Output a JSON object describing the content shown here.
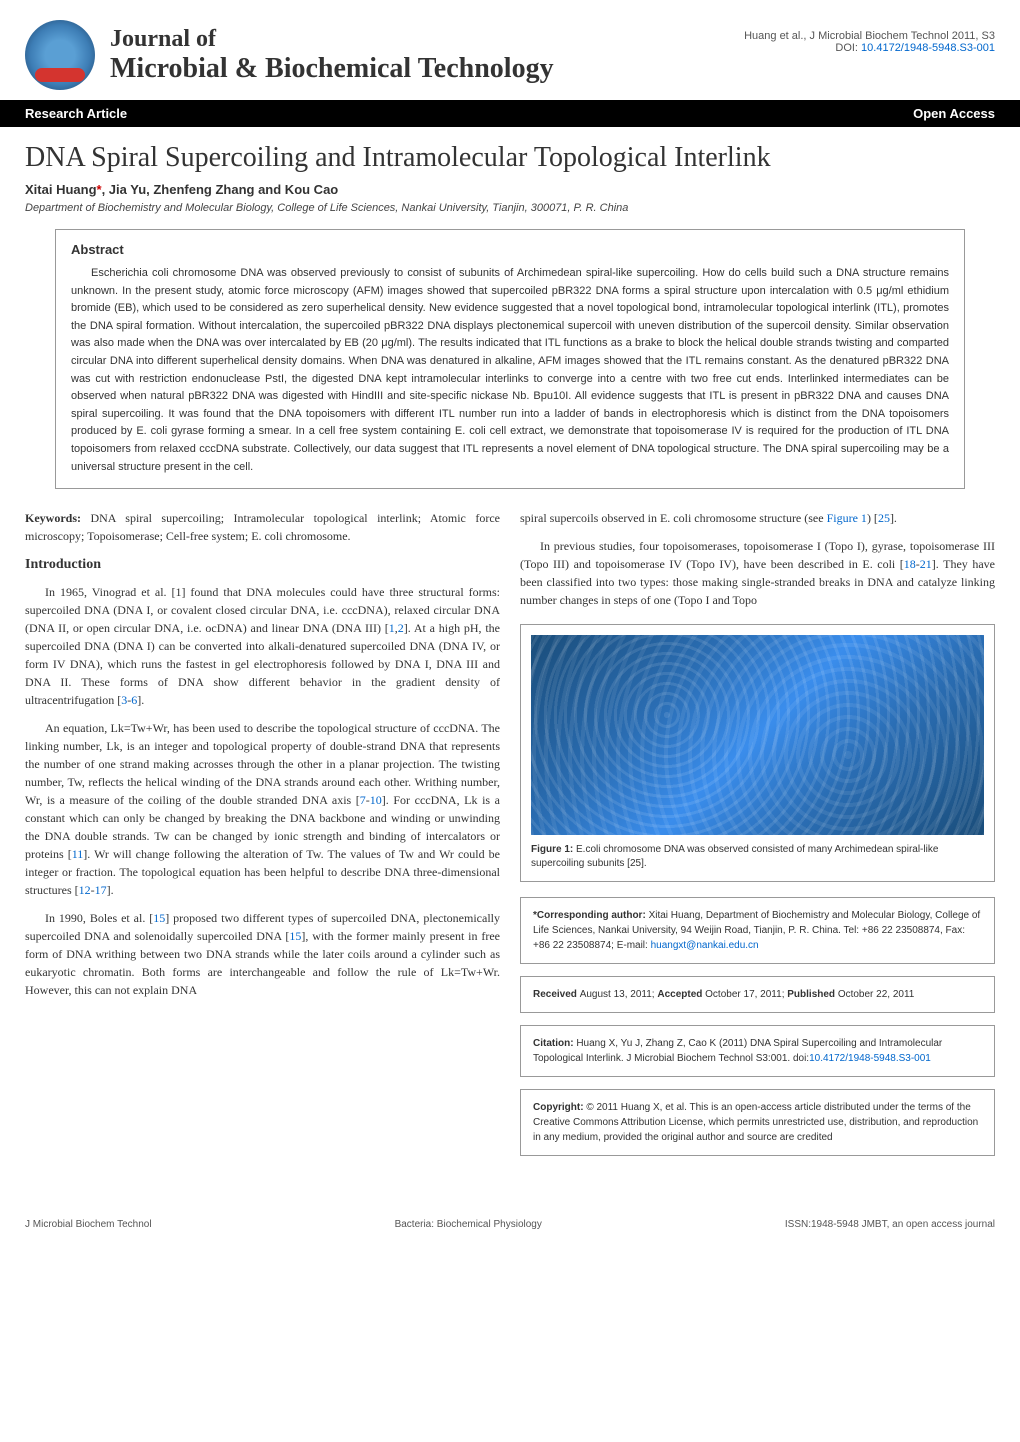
{
  "header": {
    "journal_line1": "Journal of",
    "journal_line2": "Microbial & Biochemical Technology",
    "citation": "Huang et al., J Microbial Biochem Technol 2011, S3",
    "doi_label": "DOI: ",
    "doi": "10.4172/1948-5948.S3-001"
  },
  "blackbar": {
    "left": "Research Article",
    "right": "Open Access"
  },
  "article": {
    "title": "DNA Spiral Supercoiling and Intramolecular Topological Interlink",
    "authors_prefix": "Xitai Huang",
    "authors_suffix": ", Jia Yu, Zhenfeng Zhang and Kou Cao",
    "affiliation": "Department of Biochemistry and Molecular Biology, College of Life Sciences, Nankai University, Tianjin, 300071, P. R. China"
  },
  "abstract": {
    "heading": "Abstract",
    "text": "Escherichia coli chromosome DNA was observed previously to consist of subunits of Archimedean spiral-like supercoiling. How do cells build such a DNA structure remains unknown. In the present study, atomic force microscopy (AFM) images showed that supercoiled pBR322 DNA forms a spiral structure upon intercalation with 0.5 μg/ml ethidium bromide (EB), which used to be considered as zero superhelical density. New evidence suggested that a novel topological bond, intramolecular topological interlink (ITL), promotes the DNA spiral formation. Without intercalation, the supercoiled pBR322 DNA displays plectonemical supercoil with uneven distribution of the supercoil density. Similar observation was also made when the DNA was over intercalated by EB (20 μg/ml). The results indicated that ITL functions as a brake to block the helical double strands twisting and comparted circular DNA into different superhelical density domains. When DNA was denatured in alkaline, AFM images showed that the ITL remains constant. As the denatured pBR322 DNA was cut with restriction endonuclease PstI, the digested DNA kept intramolecular interlinks to converge into a centre with two free cut ends. Interlinked intermediates can be observed when natural pBR322 DNA was digested with HindIII and site-specific nickase Nb. Bpu10I. All evidence suggests that ITL is present in pBR322 DNA and causes DNA spiral supercoiling. It was found that the DNA topoisomers with different ITL number run into a ladder of bands in electrophoresis which is distinct from the DNA topoisomers produced by E. coli gyrase forming a smear. In a cell free system containing E. coli cell extract, we demonstrate that topoisomerase IV is required for the production of ITL DNA topoisomers from relaxed cccDNA substrate. Collectively, our data suggest that ITL represents a novel element of DNA topological structure. The DNA spiral supercoiling may be a universal structure present in the cell."
  },
  "keywords": {
    "label": "Keywords: ",
    "text": "DNA spiral supercoiling; Intramolecular topological interlink; Atomic force microscopy; Topoisomerase; Cell-free system; E. coli chromosome."
  },
  "sections": {
    "intro_heading": "Introduction",
    "para1_a": "In 1965, Vinograd et al. [1] found that DNA molecules could have three structural forms: supercoiled DNA (DNA I, or covalent closed circular DNA, i.e. cccDNA), relaxed circular DNA (DNA II, or open circular DNA, i.e. ocDNA) and linear DNA (DNA III) [",
    "para1_ref1": "1",
    "para1_b": ",",
    "para1_ref2": "2",
    "para1_c": "]. At a high pH, the supercoiled DNA (DNA I) can be converted into alkali-denatured supercoiled DNA (DNA IV, or form IV DNA), which runs the fastest in gel electrophoresis followed by DNA I, DNA III and DNA II. These forms of DNA show different behavior in the gradient density of ultracentrifugation [",
    "para1_ref3": "3",
    "para1_d": "-",
    "para1_ref4": "6",
    "para1_e": "].",
    "para2_a": "An equation, Lk=Tw+Wr, has been used to describe the topological structure of cccDNA. The linking number, Lk, is an integer and topological property of double-strand DNA that represents the number of one strand making acrosses through the other in a planar projection. The twisting number, Tw, reflects the helical winding of the DNA strands around each other. Writhing number, Wr, is a measure of the coiling of the double stranded DNA axis [",
    "para2_ref1": "7",
    "para2_b": "-",
    "para2_ref2": "10",
    "para2_c": "]. For cccDNA, Lk is a constant which can only be changed by breaking the DNA backbone and winding or unwinding the DNA double strands. Tw can be changed by ionic strength and binding of intercalators or proteins [",
    "para2_ref3": "11",
    "para2_d": "]. Wr will change following the alteration of Tw. The values of Tw and Wr could be integer or fraction. The topological equation has been helpful to describe DNA three-dimensional structures [",
    "para2_ref4": "12",
    "para2_e": "-",
    "para2_ref5": "17",
    "para2_f": "].",
    "para3_a": "In 1990, Boles et al. [",
    "para3_ref1": "15",
    "para3_b": "] proposed two different types of supercoiled DNA, plectonemically supercoiled DNA and solenoidally supercoiled DNA [",
    "para3_ref2": "15",
    "para3_c": "], with the former mainly present in free form of DNA writhing between two DNA strands while the later coils around a cylinder such as eukaryotic chromatin. Both forms are interchangeable and follow the rule of Lk=Tw+Wr. However, this can not explain DNA",
    "para4_a": "spiral supercoils observed in E. coli chromosome structure (see ",
    "para4_ref1": "Figure 1",
    "para4_b": ") [",
    "para4_ref2": "25",
    "para4_c": "].",
    "para5_a": "In previous studies, four topoisomerases, topoisomerase I (Topo I), gyrase, topoisomerase III (Topo III) and topoisomerase IV (Topo IV), have been described in E. coli [",
    "para5_ref1": "18",
    "para5_b": "-",
    "para5_ref2": "21",
    "para5_c": "]. They have been classified into two types: those making single-stranded breaks in DNA and catalyze linking number changes in steps of one (Topo I and Topo"
  },
  "figure1": {
    "label": "Figure 1: ",
    "caption": "E.coli chromosome DNA was observed consisted of many Archimedean spiral-like supercoiling subunits [25]."
  },
  "corresponding": {
    "label": "*Corresponding author: ",
    "text": "Xitai Huang, Department of Biochemistry and Molecular Biology, College of Life Sciences, Nankai University, 94 Weijin Road, Tianjin, P. R. China. Tel: +86 22 23508874, Fax: +86 22 23508874; E-mail: ",
    "email": "huangxt@nankai.edu.cn"
  },
  "received": {
    "r_label": "Received ",
    "r_text": "August 13, 2011; ",
    "a_label": "Accepted ",
    "a_text": "October 17, 2011; ",
    "p_label": "Published ",
    "p_text": "October 22, 2011"
  },
  "citationbox": {
    "label": "Citation: ",
    "text": "Huang X, Yu J, Zhang Z, Cao K (2011) DNA Spiral Supercoiling and Intramolecular Topological Interlink. J Microbial Biochem Technol S3:001. doi:",
    "doi": "10.4172/1948-5948.S3-001"
  },
  "copyright": {
    "label": "Copyright: ",
    "text": "© 2011 Huang X, et al. This is an open-access article distributed under the terms of the Creative Commons Attribution License, which permits unrestricted use, distribution, and reproduction in any medium, provided the original author and source are credited"
  },
  "footer": {
    "left": "J Microbial Biochem Technol",
    "center": "Bacteria: Biochemical Physiology",
    "right": "ISSN:1948-5948 JMBT, an open access journal"
  }
}
